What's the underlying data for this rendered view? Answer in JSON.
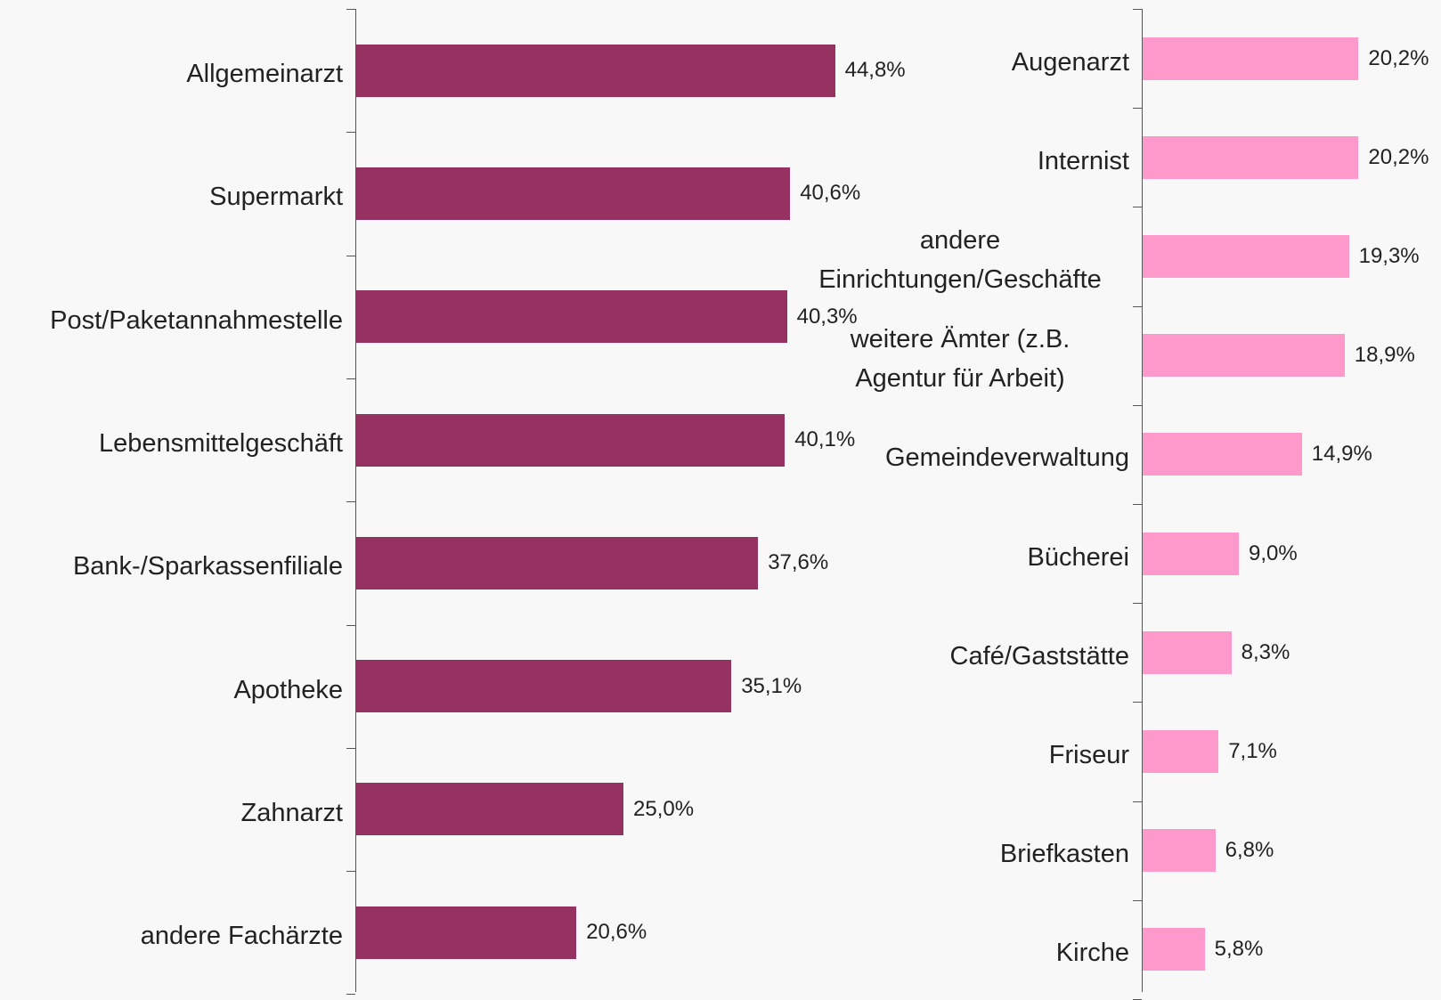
{
  "chart_data": [
    {
      "type": "bar",
      "orientation": "horizontal",
      "color": "#963262",
      "categories": [
        "Allgemeinarzt",
        "Supermarkt",
        "Post/Paketannahmestelle",
        "Lebensmittelgeschäft",
        "Bank-/Sparkassenfiliale",
        "Apotheke",
        "Zahnarzt",
        "andere Fachärzte"
      ],
      "values": [
        44.8,
        40.6,
        40.3,
        40.1,
        37.6,
        35.1,
        25.0,
        20.6
      ],
      "value_labels": [
        "44,8%",
        "40,6%",
        "40,3%",
        "40,1%",
        "37,6%",
        "35,1%",
        "25,0%",
        "20,6%"
      ]
    },
    {
      "type": "bar",
      "orientation": "horizontal",
      "color": "#fe99cc",
      "categories": [
        "Augenarzt",
        "Internist",
        "andere\nEinrichtungen/Geschäfte",
        "weitere Ämter (z.B.\nAgentur für Arbeit)",
        "Gemeindeverwaltung",
        "Bücherei",
        "Café/Gaststätte",
        "Friseur",
        "Briefkasten",
        "Kirche"
      ],
      "values": [
        20.2,
        20.2,
        19.3,
        18.9,
        14.9,
        9.0,
        8.3,
        7.1,
        6.8,
        5.8
      ],
      "value_labels": [
        "20,2%",
        "20,2%",
        "19,3%",
        "18,9%",
        "14,9%",
        "9,0%",
        "8,3%",
        "7,1%",
        "6,8%",
        "5,8%"
      ]
    }
  ]
}
